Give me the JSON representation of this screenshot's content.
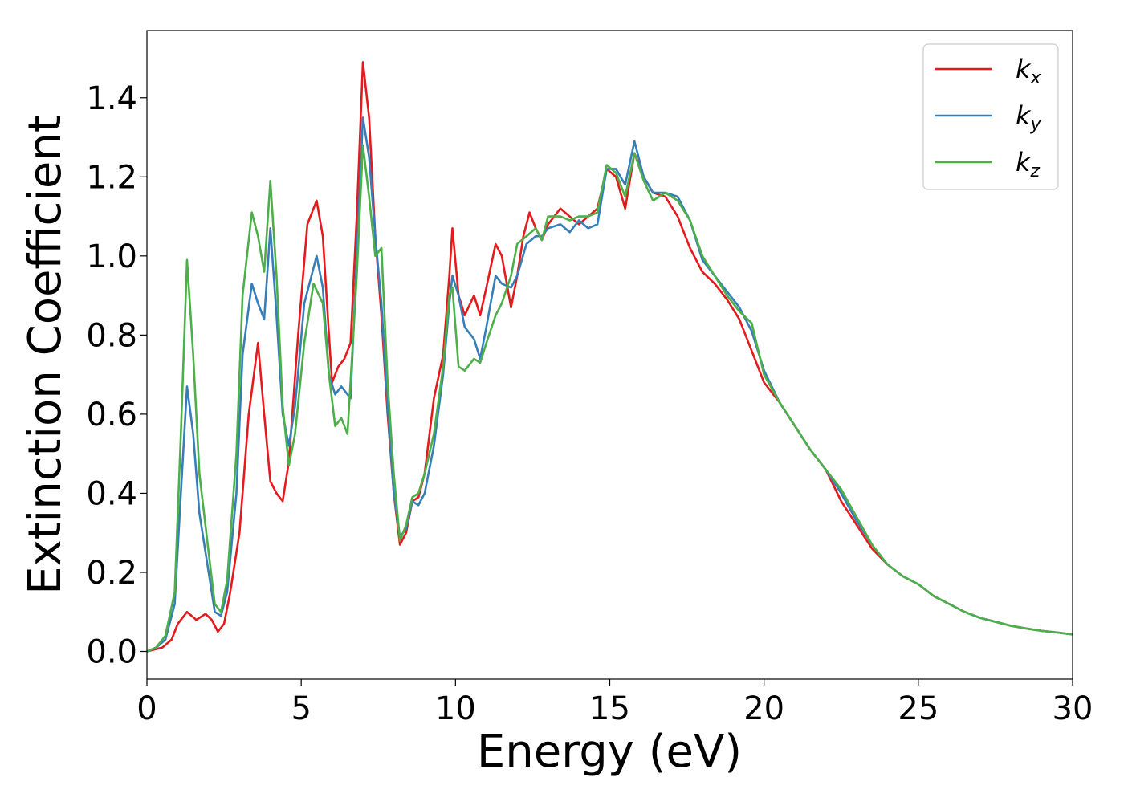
{
  "chart_data": {
    "type": "line",
    "title": "",
    "xlabel": "Energy (eV)",
    "ylabel": "Extinction Coefficient",
    "xlim": [
      0,
      30
    ],
    "ylim": [
      -0.07,
      1.57
    ],
    "xticks": [
      0,
      5,
      10,
      15,
      20,
      25,
      30
    ],
    "xtick_labels": [
      "0",
      "5",
      "10",
      "15",
      "20",
      "25",
      "30"
    ],
    "yticks": [
      0.0,
      0.2,
      0.4,
      0.6,
      0.8,
      1.0,
      1.2,
      1.4
    ],
    "ytick_labels": [
      "0.0",
      "0.2",
      "0.4",
      "0.6",
      "0.8",
      "1.0",
      "1.2",
      "1.4"
    ],
    "grid": false,
    "legend_position": "top-right",
    "series": [
      {
        "name": "k_x",
        "base": "k",
        "sub": "x",
        "color": "#e41a1c",
        "points": [
          [
            0,
            0
          ],
          [
            0.5,
            0.01
          ],
          [
            0.8,
            0.03
          ],
          [
            1.0,
            0.07
          ],
          [
            1.3,
            0.1
          ],
          [
            1.6,
            0.08
          ],
          [
            1.9,
            0.095
          ],
          [
            2.1,
            0.08
          ],
          [
            2.3,
            0.05
          ],
          [
            2.5,
            0.07
          ],
          [
            2.7,
            0.15
          ],
          [
            3.0,
            0.3
          ],
          [
            3.3,
            0.6
          ],
          [
            3.6,
            0.78
          ],
          [
            3.8,
            0.6
          ],
          [
            4.0,
            0.43
          ],
          [
            4.2,
            0.4
          ],
          [
            4.4,
            0.38
          ],
          [
            4.6,
            0.48
          ],
          [
            4.9,
            0.8
          ],
          [
            5.2,
            1.08
          ],
          [
            5.5,
            1.14
          ],
          [
            5.7,
            1.05
          ],
          [
            5.9,
            0.8
          ],
          [
            6.0,
            0.68
          ],
          [
            6.2,
            0.72
          ],
          [
            6.4,
            0.74
          ],
          [
            6.6,
            0.78
          ],
          [
            6.8,
            1.1
          ],
          [
            7.0,
            1.49
          ],
          [
            7.2,
            1.35
          ],
          [
            7.4,
            1.05
          ],
          [
            7.6,
            0.85
          ],
          [
            7.8,
            0.6
          ],
          [
            8.0,
            0.4
          ],
          [
            8.2,
            0.27
          ],
          [
            8.4,
            0.3
          ],
          [
            8.6,
            0.38
          ],
          [
            8.8,
            0.39
          ],
          [
            9.0,
            0.45
          ],
          [
            9.3,
            0.64
          ],
          [
            9.6,
            0.75
          ],
          [
            9.8,
            0.95
          ],
          [
            9.9,
            1.07
          ],
          [
            10.1,
            0.9
          ],
          [
            10.3,
            0.85
          ],
          [
            10.6,
            0.9
          ],
          [
            10.8,
            0.85
          ],
          [
            11.0,
            0.92
          ],
          [
            11.3,
            1.03
          ],
          [
            11.5,
            1.0
          ],
          [
            11.8,
            0.87
          ],
          [
            12.0,
            0.95
          ],
          [
            12.2,
            1.05
          ],
          [
            12.4,
            1.11
          ],
          [
            12.6,
            1.07
          ],
          [
            12.8,
            1.04
          ],
          [
            13.0,
            1.08
          ],
          [
            13.4,
            1.12
          ],
          [
            13.7,
            1.1
          ],
          [
            14.0,
            1.08
          ],
          [
            14.3,
            1.1
          ],
          [
            14.6,
            1.12
          ],
          [
            14.9,
            1.22
          ],
          [
            15.2,
            1.2
          ],
          [
            15.5,
            1.12
          ],
          [
            15.8,
            1.26
          ],
          [
            16.1,
            1.2
          ],
          [
            16.4,
            1.16
          ],
          [
            16.8,
            1.15
          ],
          [
            17.2,
            1.1
          ],
          [
            17.6,
            1.02
          ],
          [
            18.0,
            0.96
          ],
          [
            18.4,
            0.93
          ],
          [
            18.8,
            0.89
          ],
          [
            19.2,
            0.84
          ],
          [
            19.6,
            0.76
          ],
          [
            20.0,
            0.68
          ],
          [
            20.5,
            0.63
          ],
          [
            21.0,
            0.57
          ],
          [
            21.5,
            0.51
          ],
          [
            22.0,
            0.46
          ],
          [
            22.5,
            0.38
          ],
          [
            23.0,
            0.32
          ],
          [
            23.5,
            0.26
          ],
          [
            24.0,
            0.22
          ],
          [
            24.5,
            0.19
          ],
          [
            25.0,
            0.17
          ],
          [
            25.5,
            0.14
          ],
          [
            26.0,
            0.12
          ],
          [
            26.5,
            0.1
          ],
          [
            27.0,
            0.085
          ],
          [
            27.5,
            0.075
          ],
          [
            28.0,
            0.065
          ],
          [
            28.5,
            0.058
          ],
          [
            29.0,
            0.052
          ],
          [
            29.5,
            0.048
          ],
          [
            30.0,
            0.043
          ]
        ]
      },
      {
        "name": "k_y",
        "base": "k",
        "sub": "y",
        "color": "#377eb8",
        "points": [
          [
            0,
            0
          ],
          [
            0.3,
            0.01
          ],
          [
            0.6,
            0.03
          ],
          [
            0.9,
            0.12
          ],
          [
            1.1,
            0.4
          ],
          [
            1.3,
            0.67
          ],
          [
            1.5,
            0.55
          ],
          [
            1.7,
            0.35
          ],
          [
            2.0,
            0.2
          ],
          [
            2.2,
            0.1
          ],
          [
            2.4,
            0.09
          ],
          [
            2.6,
            0.15
          ],
          [
            2.9,
            0.4
          ],
          [
            3.1,
            0.75
          ],
          [
            3.4,
            0.93
          ],
          [
            3.6,
            0.88
          ],
          [
            3.8,
            0.84
          ],
          [
            4.0,
            1.07
          ],
          [
            4.2,
            0.85
          ],
          [
            4.4,
            0.6
          ],
          [
            4.6,
            0.52
          ],
          [
            4.8,
            0.62
          ],
          [
            5.1,
            0.88
          ],
          [
            5.5,
            1.0
          ],
          [
            5.7,
            0.92
          ],
          [
            5.9,
            0.7
          ],
          [
            6.1,
            0.65
          ],
          [
            6.3,
            0.67
          ],
          [
            6.6,
            0.64
          ],
          [
            6.8,
            1.0
          ],
          [
            7.0,
            1.35
          ],
          [
            7.2,
            1.25
          ],
          [
            7.4,
            1.05
          ],
          [
            7.6,
            0.88
          ],
          [
            7.8,
            0.62
          ],
          [
            8.0,
            0.4
          ],
          [
            8.2,
            0.29
          ],
          [
            8.4,
            0.31
          ],
          [
            8.6,
            0.38
          ],
          [
            8.8,
            0.37
          ],
          [
            9.0,
            0.4
          ],
          [
            9.3,
            0.52
          ],
          [
            9.6,
            0.7
          ],
          [
            9.8,
            0.88
          ],
          [
            9.9,
            0.95
          ],
          [
            10.1,
            0.9
          ],
          [
            10.3,
            0.82
          ],
          [
            10.6,
            0.79
          ],
          [
            10.8,
            0.74
          ],
          [
            11.0,
            0.82
          ],
          [
            11.3,
            0.95
          ],
          [
            11.5,
            0.93
          ],
          [
            11.8,
            0.92
          ],
          [
            12.0,
            0.95
          ],
          [
            12.3,
            1.03
          ],
          [
            12.6,
            1.05
          ],
          [
            12.8,
            1.05
          ],
          [
            13.0,
            1.07
          ],
          [
            13.4,
            1.08
          ],
          [
            13.7,
            1.06
          ],
          [
            14.0,
            1.09
          ],
          [
            14.3,
            1.07
          ],
          [
            14.6,
            1.08
          ],
          [
            14.9,
            1.22
          ],
          [
            15.2,
            1.22
          ],
          [
            15.5,
            1.18
          ],
          [
            15.8,
            1.29
          ],
          [
            16.1,
            1.2
          ],
          [
            16.4,
            1.16
          ],
          [
            16.8,
            1.16
          ],
          [
            17.2,
            1.15
          ],
          [
            17.6,
            1.09
          ],
          [
            18.0,
            0.99
          ],
          [
            18.4,
            0.95
          ],
          [
            18.8,
            0.91
          ],
          [
            19.2,
            0.87
          ],
          [
            19.6,
            0.81
          ],
          [
            20.0,
            0.71
          ],
          [
            20.5,
            0.63
          ],
          [
            21.0,
            0.57
          ],
          [
            21.5,
            0.51
          ],
          [
            22.0,
            0.46
          ],
          [
            22.5,
            0.4
          ],
          [
            23.0,
            0.33
          ],
          [
            23.5,
            0.27
          ],
          [
            24.0,
            0.22
          ],
          [
            24.5,
            0.19
          ],
          [
            25.0,
            0.17
          ],
          [
            25.5,
            0.14
          ],
          [
            26.0,
            0.12
          ],
          [
            26.5,
            0.1
          ],
          [
            27.0,
            0.085
          ],
          [
            27.5,
            0.075
          ],
          [
            28.0,
            0.065
          ],
          [
            28.5,
            0.058
          ],
          [
            29.0,
            0.052
          ],
          [
            29.5,
            0.048
          ],
          [
            30.0,
            0.043
          ]
        ]
      },
      {
        "name": "k_z",
        "base": "k",
        "sub": "z",
        "color": "#4daf4a",
        "points": [
          [
            0,
            0
          ],
          [
            0.3,
            0.01
          ],
          [
            0.6,
            0.04
          ],
          [
            0.9,
            0.15
          ],
          [
            1.1,
            0.55
          ],
          [
            1.3,
            0.99
          ],
          [
            1.5,
            0.75
          ],
          [
            1.7,
            0.45
          ],
          [
            2.0,
            0.25
          ],
          [
            2.2,
            0.12
          ],
          [
            2.4,
            0.1
          ],
          [
            2.6,
            0.18
          ],
          [
            2.9,
            0.5
          ],
          [
            3.1,
            0.9
          ],
          [
            3.4,
            1.11
          ],
          [
            3.6,
            1.05
          ],
          [
            3.8,
            0.96
          ],
          [
            4.0,
            1.19
          ],
          [
            4.2,
            0.95
          ],
          [
            4.4,
            0.62
          ],
          [
            4.6,
            0.47
          ],
          [
            4.8,
            0.55
          ],
          [
            5.1,
            0.78
          ],
          [
            5.4,
            0.93
          ],
          [
            5.7,
            0.88
          ],
          [
            5.9,
            0.7
          ],
          [
            6.1,
            0.57
          ],
          [
            6.3,
            0.59
          ],
          [
            6.5,
            0.55
          ],
          [
            6.8,
            0.95
          ],
          [
            7.0,
            1.28
          ],
          [
            7.2,
            1.15
          ],
          [
            7.4,
            1.0
          ],
          [
            7.6,
            1.02
          ],
          [
            7.8,
            0.68
          ],
          [
            8.0,
            0.45
          ],
          [
            8.2,
            0.28
          ],
          [
            8.4,
            0.32
          ],
          [
            8.6,
            0.39
          ],
          [
            8.8,
            0.4
          ],
          [
            9.0,
            0.45
          ],
          [
            9.3,
            0.55
          ],
          [
            9.6,
            0.72
          ],
          [
            9.8,
            0.9
          ],
          [
            9.9,
            0.92
          ],
          [
            10.1,
            0.72
          ],
          [
            10.3,
            0.71
          ],
          [
            10.6,
            0.74
          ],
          [
            10.8,
            0.73
          ],
          [
            11.0,
            0.78
          ],
          [
            11.3,
            0.85
          ],
          [
            11.5,
            0.88
          ],
          [
            11.8,
            0.95
          ],
          [
            12.0,
            1.03
          ],
          [
            12.3,
            1.05
          ],
          [
            12.6,
            1.07
          ],
          [
            12.8,
            1.04
          ],
          [
            13.0,
            1.1
          ],
          [
            13.4,
            1.1
          ],
          [
            13.7,
            1.09
          ],
          [
            14.0,
            1.1
          ],
          [
            14.3,
            1.1
          ],
          [
            14.6,
            1.11
          ],
          [
            14.9,
            1.23
          ],
          [
            15.2,
            1.21
          ],
          [
            15.5,
            1.15
          ],
          [
            15.8,
            1.26
          ],
          [
            16.1,
            1.19
          ],
          [
            16.4,
            1.14
          ],
          [
            16.8,
            1.16
          ],
          [
            17.2,
            1.14
          ],
          [
            17.6,
            1.09
          ],
          [
            18.0,
            1.0
          ],
          [
            18.4,
            0.95
          ],
          [
            18.8,
            0.9
          ],
          [
            19.2,
            0.86
          ],
          [
            19.6,
            0.83
          ],
          [
            20.0,
            0.7
          ],
          [
            20.5,
            0.63
          ],
          [
            21.0,
            0.57
          ],
          [
            21.5,
            0.51
          ],
          [
            22.0,
            0.46
          ],
          [
            22.5,
            0.41
          ],
          [
            23.0,
            0.34
          ],
          [
            23.5,
            0.27
          ],
          [
            24.0,
            0.22
          ],
          [
            24.5,
            0.19
          ],
          [
            25.0,
            0.17
          ],
          [
            25.5,
            0.14
          ],
          [
            26.0,
            0.12
          ],
          [
            26.5,
            0.1
          ],
          [
            27.0,
            0.085
          ],
          [
            27.5,
            0.075
          ],
          [
            28.0,
            0.065
          ],
          [
            28.5,
            0.058
          ],
          [
            29.0,
            0.052
          ],
          [
            29.5,
            0.048
          ],
          [
            30.0,
            0.043
          ]
        ]
      }
    ]
  }
}
